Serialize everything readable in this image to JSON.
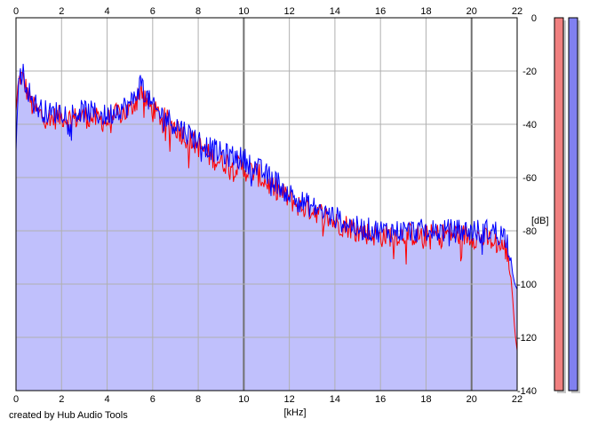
{
  "footer": {
    "credit": "created by Hub Audio Tools"
  },
  "chart_data": {
    "type": "line",
    "xlabel": "[kHz]",
    "ylabel": "[dB]",
    "xlim": [
      0,
      22
    ],
    "ylim": [
      -140,
      0
    ],
    "x_ticks": [
      0,
      2,
      4,
      6,
      8,
      10,
      12,
      14,
      16,
      18,
      20,
      22
    ],
    "y_ticks": [
      0,
      -20,
      -40,
      -60,
      -80,
      -100,
      -120,
      -140
    ],
    "grid": true,
    "colors": {
      "fill": "#c0c0fc",
      "grid": "#b0b0b0",
      "grid_major": "#707070",
      "axis": "#000000"
    },
    "series": [
      {
        "color": "#ff0000",
        "x": [
          0,
          0.1,
          0.2,
          0.3,
          0.5,
          0.7,
          1,
          1.5,
          2,
          2.5,
          3,
          3.5,
          4,
          4.5,
          5,
          5.3,
          5.5,
          5.7,
          6,
          6.5,
          7,
          7.5,
          8,
          8.5,
          9,
          9.5,
          10,
          10.5,
          11,
          11.5,
          12,
          12.5,
          13,
          13.5,
          14,
          14.5,
          15,
          16,
          17,
          18,
          19,
          20,
          21,
          21.5,
          21.7,
          21.8,
          21.9,
          22
        ],
        "y": [
          -35,
          -25,
          -22,
          -23,
          -28,
          -33,
          -36,
          -38,
          -37,
          -38,
          -37,
          -38,
          -39,
          -36,
          -35,
          -30,
          -26,
          -31,
          -35,
          -38,
          -41,
          -45,
          -48,
          -52,
          -54,
          -55,
          -57,
          -58,
          -62,
          -65,
          -68,
          -71,
          -72,
          -74,
          -77,
          -78,
          -80,
          -82,
          -81,
          -82,
          -81,
          -82,
          -84,
          -87,
          -95,
          -105,
          -118,
          -125
        ]
      },
      {
        "color": "#0000ff",
        "x": [
          0,
          0.1,
          0.2,
          0.3,
          0.5,
          0.7,
          1,
          1.5,
          2,
          2.5,
          3,
          3.5,
          4,
          4.5,
          5,
          5.3,
          5.5,
          5.7,
          6,
          6.5,
          7,
          7.5,
          8,
          8.5,
          9,
          9.5,
          10,
          10.5,
          11,
          11.5,
          12,
          12.5,
          13,
          13.5,
          14,
          14.5,
          15,
          16,
          17,
          18,
          19,
          20,
          21,
          21.5,
          21.7,
          21.8,
          21.9,
          22
        ],
        "y": [
          -50,
          -24,
          -19,
          -21,
          -26,
          -31,
          -34,
          -36,
          -35,
          -36,
          -35,
          -36,
          -37,
          -34,
          -33,
          -28,
          -24,
          -29,
          -34,
          -37,
          -40,
          -43,
          -46,
          -49,
          -51,
          -52,
          -53,
          -56,
          -59,
          -62,
          -66,
          -69,
          -71,
          -73,
          -75,
          -77,
          -79,
          -80,
          -80,
          -80,
          -80,
          -80,
          -80,
          -82,
          -88,
          -96,
          -100,
          -102
        ]
      }
    ],
    "level_meters": [
      {
        "color": "#f08080"
      },
      {
        "color": "#8080f0"
      }
    ]
  }
}
